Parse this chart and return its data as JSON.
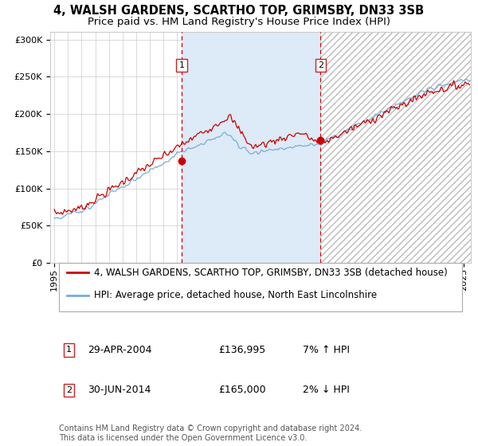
{
  "title_line1": "4, WALSH GARDENS, SCARTHO TOP, GRIMSBY, DN33 3SB",
  "title_line2": "Price paid vs. HM Land Registry's House Price Index (HPI)",
  "legend_line1": "4, WALSH GARDENS, SCARTHO TOP, GRIMSBY, DN33 3SB (detached house)",
  "legend_line2": "HPI: Average price, detached house, North East Lincolnshire",
  "annotation1_label": "1",
  "annotation1_date": "29-APR-2004",
  "annotation1_price": "£136,995",
  "annotation1_hpi": "7% ↑ HPI",
  "annotation2_label": "2",
  "annotation2_date": "30-JUN-2014",
  "annotation2_price": "£165,000",
  "annotation2_hpi": "2% ↓ HPI",
  "copyright": "Contains HM Land Registry data © Crown copyright and database right 2024.\nThis data is licensed under the Open Government Licence v3.0.",
  "year_start": 1995,
  "year_end": 2025,
  "ylim_min": 0,
  "ylim_max": 310000,
  "purchase1_year": 2004.33,
  "purchase1_value": 136995,
  "purchase2_year": 2014.5,
  "purchase2_value": 165000,
  "red_line_color": "#cc0000",
  "blue_line_color": "#7aacd6",
  "shade_color": "#ddeaf7",
  "dashed_line_color": "#cc0000",
  "background_color": "#ffffff",
  "grid_color": "#cccccc",
  "hatch_color": "#bbbbbb",
  "title_fontsize": 10.5,
  "subtitle_fontsize": 9.5,
  "tick_fontsize": 8,
  "legend_fontsize": 8.5,
  "annot_fontsize": 9
}
